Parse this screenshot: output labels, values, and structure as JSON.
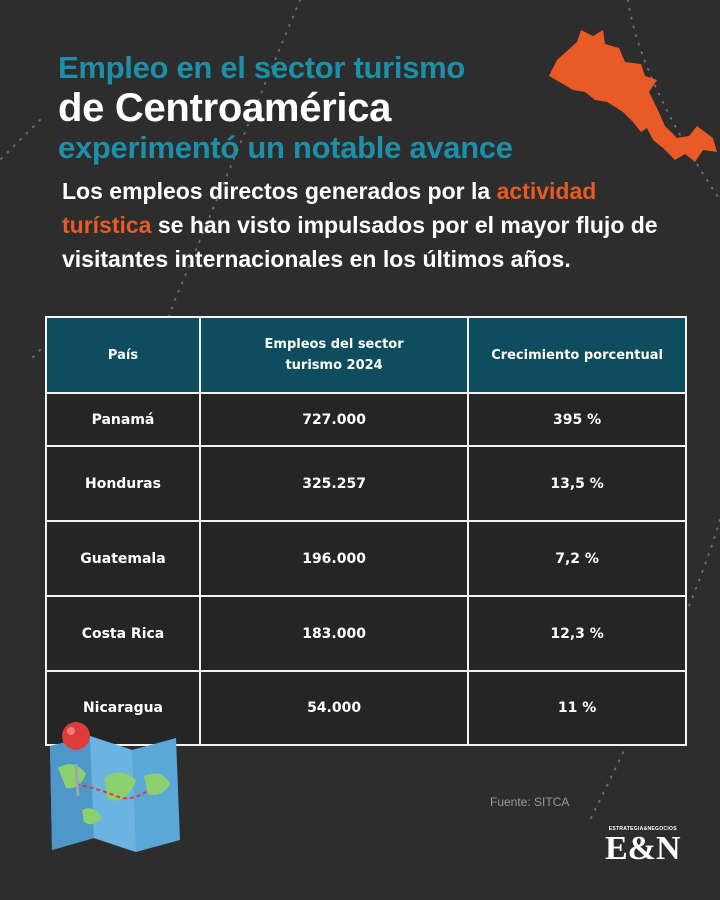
{
  "header": {
    "title_line1": "Empleo en el sector turismo",
    "title_line2": "de Centroamérica",
    "title_line3": "experimentó un notable avance"
  },
  "intro": {
    "part1": "Los empleos directos generados por la ",
    "highlight": "actividad turística",
    "part2": " se han visto impulsados por el mayor flujo de visitantes internacionales en los últimos años."
  },
  "chart_data": {
    "type": "table",
    "columns": [
      "País",
      "Empleos del sector turismo 2024",
      "Crecimiento porcentual"
    ],
    "rows": [
      [
        "Panamá",
        "727.000",
        "395 %"
      ],
      [
        "Honduras",
        "325.257",
        "13,5 %"
      ],
      [
        "Guatemala",
        "196.000",
        "7,2 %"
      ],
      [
        "Costa Rica",
        "183.000",
        "12,3 %"
      ],
      [
        "Nicaragua",
        "54.000",
        "11 %"
      ]
    ]
  },
  "footer": {
    "source": "Fuente: SITCA",
    "brand_small": "ESTRATEGIA&NEGOCIOS",
    "brand_logo": "E&N"
  },
  "colors": {
    "accent_teal": "#1d8fa8",
    "accent_orange": "#e85a26",
    "header_bg": "#0d4d5e",
    "background": "#2d2d2e"
  },
  "icons": [
    "central-america-map-icon",
    "folded-map-pin-icon"
  ]
}
